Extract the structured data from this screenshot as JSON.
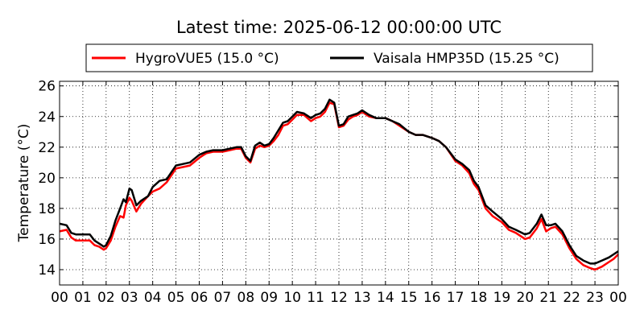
{
  "chart_data": {
    "type": "line",
    "title": "Latest time: 2025-06-12 00:00:00 UTC",
    "xlabel": "",
    "ylabel": "Temperature (°C)",
    "xlim": [
      0,
      24
    ],
    "ylim": [
      13,
      26.3
    ],
    "x_ticks": [
      0,
      1,
      2,
      3,
      4,
      5,
      6,
      7,
      8,
      9,
      10,
      11,
      12,
      13,
      14,
      15,
      16,
      17,
      18,
      19,
      20,
      21,
      22,
      23,
      24
    ],
    "x_tick_labels": [
      "00",
      "01",
      "02",
      "03",
      "04",
      "05",
      "06",
      "07",
      "08",
      "09",
      "10",
      "11",
      "12",
      "13",
      "14",
      "15",
      "16",
      "17",
      "18",
      "19",
      "20",
      "21",
      "22",
      "23",
      "00"
    ],
    "y_ticks": [
      14,
      16,
      18,
      20,
      22,
      24,
      26
    ],
    "y_tick_labels": [
      "14",
      "16",
      "18",
      "20",
      "22",
      "24",
      "26"
    ],
    "grid": true,
    "legend_position": "top",
    "x_unit": "hour of day (UTC)",
    "series": [
      {
        "name": "HygroVUE5 (15.0 °C)",
        "color": "#ff0000",
        "x": [
          0,
          0.3,
          0.5,
          0.7,
          1,
          1.3,
          1.5,
          1.7,
          1.9,
          2.0,
          2.2,
          2.4,
          2.6,
          2.75,
          2.85,
          3.0,
          3.1,
          3.3,
          3.5,
          3.8,
          4.0,
          4.3,
          4.6,
          5.0,
          5.3,
          5.6,
          6.0,
          6.3,
          6.6,
          7.0,
          7.3,
          7.6,
          7.8,
          8.0,
          8.2,
          8.4,
          8.6,
          8.8,
          9.0,
          9.2,
          9.4,
          9.6,
          9.8,
          10.0,
          10.2,
          10.5,
          10.8,
          11.0,
          11.2,
          11.4,
          11.6,
          11.8,
          12.0,
          12.2,
          12.4,
          12.6,
          12.8,
          13.0,
          13.3,
          13.6,
          14.0,
          14.3,
          14.6,
          15.0,
          15.3,
          15.6,
          16.0,
          16.3,
          16.6,
          17.0,
          17.3,
          17.6,
          17.8,
          18.0,
          18.3,
          18.6,
          19.0,
          19.3,
          19.6,
          20.0,
          20.2,
          20.5,
          20.7,
          20.9,
          21.1,
          21.3,
          21.6,
          21.9,
          22.2,
          22.5,
          22.8,
          23.0,
          23.3,
          23.6,
          23.8,
          24.0
        ],
        "values": [
          16.5,
          16.6,
          16.1,
          15.9,
          15.9,
          15.9,
          15.6,
          15.5,
          15.3,
          15.4,
          15.9,
          16.8,
          17.5,
          17.4,
          18.2,
          18.7,
          18.5,
          17.8,
          18.3,
          18.8,
          19.1,
          19.3,
          19.7,
          20.6,
          20.7,
          20.8,
          21.3,
          21.6,
          21.7,
          21.7,
          21.8,
          21.9,
          21.9,
          21.3,
          21.0,
          21.9,
          22.1,
          22.0,
          22.1,
          22.4,
          22.8,
          23.4,
          23.5,
          23.8,
          24.1,
          24.1,
          23.7,
          23.9,
          24.0,
          24.3,
          24.9,
          24.8,
          23.3,
          23.4,
          23.8,
          24.0,
          24.1,
          24.3,
          24.0,
          23.9,
          23.9,
          23.7,
          23.4,
          23.0,
          22.8,
          22.8,
          22.6,
          22.4,
          22.0,
          21.1,
          20.8,
          20.3,
          19.6,
          19.2,
          18.0,
          17.5,
          17.1,
          16.6,
          16.4,
          16.0,
          16.1,
          16.7,
          17.3,
          16.5,
          16.7,
          16.8,
          16.3,
          15.4,
          14.7,
          14.3,
          14.1,
          14.0,
          14.2,
          14.5,
          14.7,
          15.0
        ]
      },
      {
        "name": "Vaisala HMP35D (15.25 °C)",
        "color": "#000000",
        "x": [
          0,
          0.3,
          0.5,
          0.7,
          1,
          1.3,
          1.5,
          1.7,
          1.9,
          2.0,
          2.2,
          2.4,
          2.6,
          2.75,
          2.85,
          3.0,
          3.1,
          3.3,
          3.5,
          3.8,
          4.0,
          4.3,
          4.6,
          5.0,
          5.3,
          5.6,
          6.0,
          6.3,
          6.6,
          7.0,
          7.3,
          7.6,
          7.8,
          8.0,
          8.2,
          8.4,
          8.6,
          8.8,
          9.0,
          9.2,
          9.4,
          9.6,
          9.8,
          10.0,
          10.2,
          10.5,
          10.8,
          11.0,
          11.2,
          11.4,
          11.6,
          11.8,
          12.0,
          12.2,
          12.4,
          12.6,
          12.8,
          13.0,
          13.3,
          13.6,
          14.0,
          14.3,
          14.6,
          15.0,
          15.3,
          15.6,
          16.0,
          16.3,
          16.6,
          17.0,
          17.3,
          17.6,
          17.8,
          18.0,
          18.3,
          18.6,
          19.0,
          19.3,
          19.6,
          20.0,
          20.2,
          20.5,
          20.7,
          20.9,
          21.1,
          21.3,
          21.6,
          21.9,
          22.2,
          22.5,
          22.8,
          23.0,
          23.3,
          23.6,
          23.8,
          24.0
        ],
        "values": [
          17.0,
          16.9,
          16.4,
          16.3,
          16.3,
          16.3,
          15.9,
          15.7,
          15.5,
          15.6,
          16.2,
          17.2,
          18.0,
          18.6,
          18.4,
          19.3,
          19.2,
          18.2,
          18.5,
          18.8,
          19.4,
          19.8,
          19.9,
          20.8,
          20.9,
          21.0,
          21.5,
          21.7,
          21.8,
          21.8,
          21.9,
          22.0,
          22.0,
          21.4,
          21.1,
          22.1,
          22.3,
          22.1,
          22.2,
          22.6,
          23.1,
          23.6,
          23.7,
          24.0,
          24.3,
          24.2,
          23.9,
          24.1,
          24.2,
          24.5,
          25.1,
          24.9,
          23.4,
          23.5,
          24.0,
          24.1,
          24.2,
          24.4,
          24.1,
          23.9,
          23.9,
          23.7,
          23.5,
          23.0,
          22.8,
          22.8,
          22.6,
          22.4,
          22.0,
          21.2,
          20.9,
          20.5,
          19.8,
          19.4,
          18.2,
          17.8,
          17.3,
          16.8,
          16.6,
          16.3,
          16.4,
          17.0,
          17.6,
          16.9,
          16.9,
          17.0,
          16.5,
          15.6,
          14.9,
          14.6,
          14.4,
          14.4,
          14.6,
          14.8,
          15.0,
          15.2
        ]
      }
    ]
  }
}
